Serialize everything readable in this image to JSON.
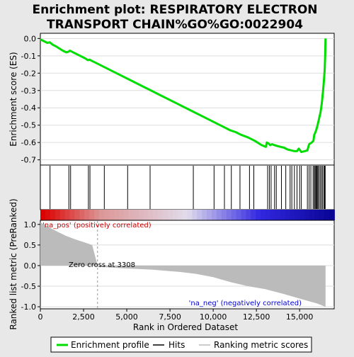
{
  "chart_data": {
    "type": "line",
    "title": "Enrichment plot: RESPIRATORY ELECTRON TRANSPORT CHAIN%GO%GO:0022904",
    "title_lines": [
      "Enrichment plot: RESPIRATORY ELECTRON",
      "TRANSPORT CHAIN%GO%GO:0022904"
    ],
    "enrichment_panel": {
      "ylabel": "Enrichment score (ES)",
      "ylim": [
        -0.73,
        0.03
      ],
      "yticks": [
        0.0,
        -0.1,
        -0.2,
        -0.3,
        -0.4,
        -0.5,
        -0.6,
        -0.7
      ],
      "ytick_labels": [
        "0.0",
        "-0.1",
        "-0.2",
        "-0.3",
        "-0.4",
        "-0.5",
        "-0.6",
        "-0.7"
      ],
      "grid": true,
      "line_color": "#00dd00",
      "series": [
        {
          "x": [
            0,
            200,
            400,
            550,
            700,
            900,
            1100,
            1300,
            1500,
            1650,
            1700,
            1800,
            2000,
            2200,
            2400,
            2600,
            2750,
            2850,
            3000,
            3300,
            3700,
            4200,
            5000,
            6000,
            6300,
            7000,
            8000,
            8800,
            9500,
            10000,
            10600,
            11000,
            11300,
            11600,
            12000,
            12400,
            12800,
            13050,
            13100,
            13200,
            13300,
            13400,
            13550,
            13700,
            13900,
            14100,
            14300,
            14500,
            14700,
            14850,
            14950,
            15100,
            15300,
            15450,
            15550,
            15700,
            15800,
            15850,
            15900,
            15950,
            16000,
            16050,
            16100,
            16150,
            16200,
            16250,
            16300,
            16350,
            16400,
            16450,
            16480,
            16500
          ],
          "y": [
            -0.005,
            -0.015,
            -0.025,
            -0.022,
            -0.035,
            -0.045,
            -0.058,
            -0.07,
            -0.08,
            -0.075,
            -0.07,
            -0.075,
            -0.085,
            -0.095,
            -0.105,
            -0.115,
            -0.125,
            -0.122,
            -0.13,
            -0.145,
            -0.165,
            -0.19,
            -0.23,
            -0.28,
            -0.295,
            -0.33,
            -0.38,
            -0.42,
            -0.455,
            -0.48,
            -0.51,
            -0.53,
            -0.54,
            -0.555,
            -0.57,
            -0.59,
            -0.615,
            -0.625,
            -0.6,
            -0.605,
            -0.615,
            -0.61,
            -0.615,
            -0.62,
            -0.625,
            -0.63,
            -0.64,
            -0.645,
            -0.65,
            -0.65,
            -0.635,
            -0.655,
            -0.65,
            -0.645,
            -0.61,
            -0.6,
            -0.59,
            -0.555,
            -0.545,
            -0.53,
            -0.515,
            -0.495,
            -0.475,
            -0.45,
            -0.43,
            -0.4,
            -0.36,
            -0.31,
            -0.25,
            -0.18,
            -0.1,
            0.0
          ]
        }
      ]
    },
    "hits_panel": {
      "hit_positions": [
        560,
        1650,
        1750,
        2780,
        2870,
        3700,
        5050,
        6350,
        8850,
        10050,
        10650,
        11050,
        11550,
        12100,
        12350,
        13150,
        13250,
        13350,
        13550,
        13650,
        13950,
        14200,
        14450,
        14550,
        14700,
        14850,
        15000,
        15100,
        15450,
        15550,
        15650,
        15780,
        15850,
        15900,
        15950,
        16000,
        16050,
        16100,
        16180,
        16250,
        16320,
        16400,
        16450,
        16480
      ]
    },
    "ranking_panel": {
      "ylabel": "Ranked list metric (PreRanked)",
      "xlabel": "Rank in Ordered Dataset",
      "ylim": [
        -1.05,
        1.1
      ],
      "yticks": [
        1.0,
        0.5,
        0.0,
        -0.5,
        -1.0
      ],
      "ytick_labels": [
        "1.0",
        "0.5",
        "0.0",
        "-0.5",
        "-1.0"
      ],
      "xlim": [
        0,
        17000
      ],
      "xticks": [
        0,
        2500,
        5000,
        7500,
        10000,
        12500,
        15000
      ],
      "xtick_labels": [
        "0",
        "2,500",
        "5,000",
        "7,500",
        "10,000",
        "12,500",
        "15,000"
      ],
      "metric_x": [
        0,
        200,
        500,
        1000,
        1500,
        2000,
        2500,
        3000,
        3308,
        3500,
        4500,
        6500,
        8000,
        9000,
        10000,
        11000,
        12000,
        13000,
        14000,
        15000,
        15500,
        16000,
        16300,
        16500
      ],
      "metric_y": [
        1.05,
        1.0,
        0.93,
        0.82,
        0.72,
        0.64,
        0.57,
        0.5,
        0.0,
        -0.03,
        -0.06,
        -0.1,
        -0.15,
        -0.2,
        -0.28,
        -0.4,
        -0.5,
        -0.57,
        -0.68,
        -0.8,
        -0.86,
        -0.92,
        -0.97,
        -1.0
      ],
      "zero_cross_x": 3308,
      "zero_cross_label": "Zero cross at 3308",
      "pos_label": "'na_pos' (positively correlated)",
      "neg_label": "'na_neg' (negatively correlated)",
      "pos_label_color": "#cc0000",
      "neg_label_color": "#0000cc",
      "fill_color": "#bbbbbb"
    },
    "legend": {
      "items": [
        {
          "label": "Enrichment profile",
          "color": "#00dd00"
        },
        {
          "label": "Hits",
          "color": "#000000"
        },
        {
          "label": "Ranking metric scores",
          "color": "#bbbbbb"
        }
      ]
    }
  }
}
